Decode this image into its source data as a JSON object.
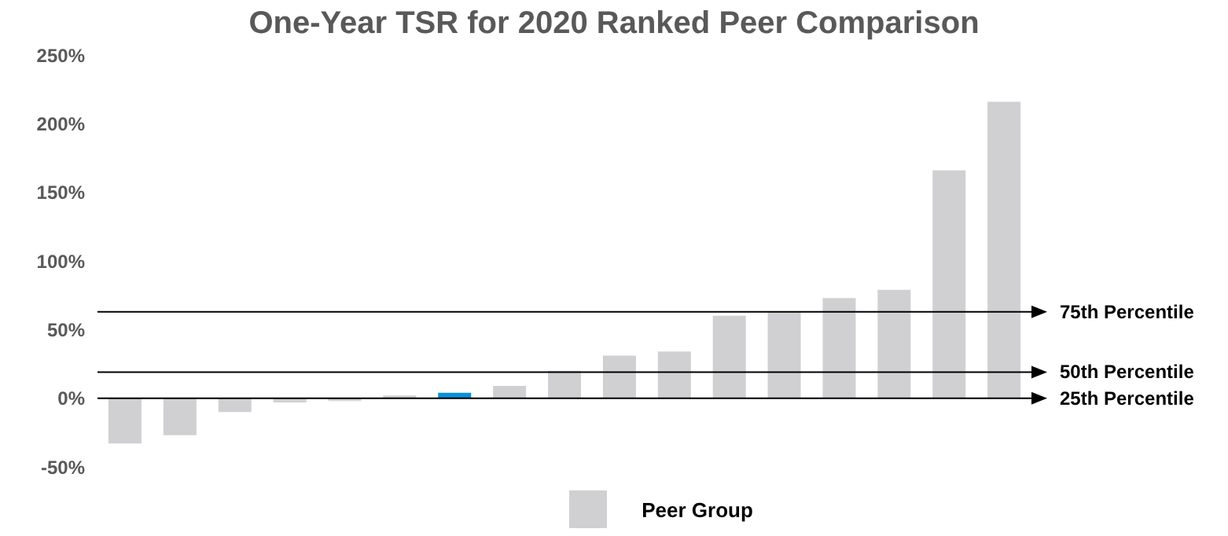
{
  "chart_data": {
    "type": "bar",
    "title": "One-Year TSR for 2020 Ranked Peer Comparison",
    "categories": [
      null,
      null,
      null,
      null,
      null,
      null,
      null,
      null,
      null,
      null,
      null,
      null,
      null,
      null,
      null,
      null,
      null
    ],
    "stacked": true,
    "series": [
      {
        "name": "Peer Group",
        "color": "#d0d0d2",
        "values": [
          -33,
          -27,
          -10,
          -3,
          -2,
          2,
          null,
          9,
          20,
          31,
          34,
          60,
          63,
          73,
          79,
          166,
          216
        ]
      },
      {
        "color": "#0a8fd8",
        "values": [
          null,
          null,
          null,
          null,
          null,
          null,
          4,
          null,
          null,
          null,
          null,
          null,
          null,
          null,
          null,
          null,
          null
        ]
      }
    ],
    "ylim": [
      -50,
      250
    ],
    "yticks": [
      {
        "value": -50,
        "label": "-50%"
      },
      {
        "value": 0,
        "label": "0%"
      },
      {
        "value": 50,
        "label": "50%"
      },
      {
        "value": 100,
        "label": "100%"
      },
      {
        "value": 150,
        "label": "150%"
      },
      {
        "value": 200,
        "label": "200%"
      },
      {
        "value": 250,
        "label": "250%"
      }
    ],
    "ref_lines": [
      {
        "axis": "y",
        "value": 63,
        "label": "75th Percentile",
        "color": "#000000"
      },
      {
        "axis": "y",
        "value": 19,
        "label": "50th Percentile",
        "color": "#000000"
      },
      {
        "axis": "y",
        "value": 0,
        "label": "25th Percentile",
        "color": "#000000"
      }
    ],
    "grid": false,
    "legend": "bottom"
  }
}
